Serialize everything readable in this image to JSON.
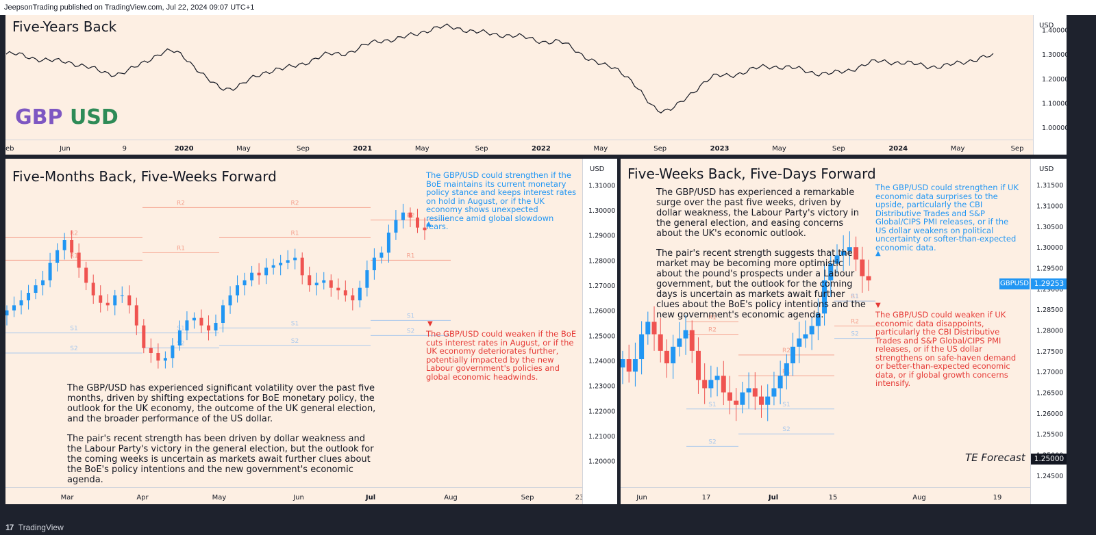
{
  "publish_info": "JeepsonTrading published on TradingView.com, Jul 22, 2024 09:07 UTC+1",
  "footer": {
    "brand": "TradingView"
  },
  "colors": {
    "panel_bg": "#fdefe3",
    "up": "#2196f3",
    "down": "#ef5350",
    "resistance": "#f4a28f",
    "support": "#a9c8ec",
    "blue_text": "#2196f3",
    "red_text": "#e53935",
    "gbp": "#7e57c2",
    "usd": "#2e8b57"
  },
  "top_chart": {
    "title": "Five-Years Back",
    "pair_gbp": "GBP",
    "pair_usd": "USD",
    "currency": "USD"
  },
  "left_chart": {
    "title": "Five-Months Back, Five-Weeks Forward",
    "currency": "USD",
    "level_labels": [
      "R2",
      "R1",
      "S1",
      "S2"
    ],
    "upside_note": "The GBP/USD could strengthen if the BoE maintains its current monetary policy stance and keeps interest rates on hold in August, or if the UK economy shows unexpected resilience amid global slowdown fears.",
    "downside_note": "The GBP/USD could weaken if the BoE cuts interest rates in August, or if the UK economy deteriorates further, potentially impacted by the new Labour government's policies and global economic headwinds.",
    "para1": "The GBP/USD has experienced significant volatility over the past five months, driven by shifting expectations for BoE monetary policy, the outlook for the UK economy, the outcome of the UK general election, and the broader performance of the US dollar.",
    "para2": "The pair's recent strength has been driven by dollar weakness and the Labour Party's victory in the general election, but the outlook for the coming weeks is uncertain as markets await further clues about the BoE's policy intentions and the new government's economic agenda.",
    "up_marker": "▲",
    "down_marker": "▼"
  },
  "right_chart": {
    "title": "Five-Weeks Back, Five-Days Forward",
    "currency": "USD",
    "para1": "The GBP/USD has experienced a remarkable surge over the past five weeks, driven by dollar weakness, the Labour Party's victory in the general election, and easing concerns about the UK's economic outlook.",
    "para2": "The pair's recent strength suggests that the market may be becoming more optimistic about the pound's prospects under a Labour government, but the outlook for the coming days is uncertain as markets await further clues about the BoE's policy intentions and the new government's economic agenda.",
    "upside_note": "The GBP/USD could strengthen if UK economic data surprises to the upside, particularly the CBI Distributive Trades and S&P Global/CIPS PMI releases, or if the US dollar weakens on political uncertainty or softer-than-expected economic data.",
    "downside_note": "The GBP/USD could weaken if UK economic data disappoints, particularly the CBI Distributive Trades and S&P Global/CIPS PMI releases, or if the US dollar strengthens on safe-haven demand or better-than-expected economic data, or if global growth concerns intensify.",
    "symbol_tag": "GBPUSD",
    "price_tag": "1.29253",
    "forecast_label": "TE Forecast",
    "forecast_value": "1.25000",
    "up_marker": "▲",
    "down_marker": "▼"
  },
  "chart_data": [
    {
      "type": "line",
      "title": "Five-Years Back",
      "series": [
        {
          "name": "GBPUSD",
          "x": [
            "2019-02",
            "2019-06",
            "2019-09",
            "2020-01",
            "2020-03",
            "2020-05",
            "2020-09",
            "2021-01",
            "2021-05",
            "2021-09",
            "2022-01",
            "2022-05",
            "2022-09",
            "2023-01",
            "2023-05",
            "2023-09",
            "2024-01",
            "2024-05",
            "2024-07"
          ],
          "values": [
            1.3,
            1.27,
            1.22,
            1.31,
            1.16,
            1.24,
            1.3,
            1.36,
            1.41,
            1.38,
            1.35,
            1.25,
            1.07,
            1.21,
            1.25,
            1.22,
            1.27,
            1.25,
            1.29
          ]
        }
      ],
      "x_tick_labels": [
        "eb",
        "Jun",
        "9",
        "2020",
        "May",
        "Sep",
        "2021",
        "May",
        "Sep",
        "2022",
        "May",
        "Sep",
        "2023",
        "May",
        "Sep",
        "2024",
        "May",
        "Sep"
      ],
      "y_tick_labels": [
        "1.40000",
        "1.30000",
        "1.20000",
        "1.10000",
        "1.00000"
      ],
      "ylim": [
        0.95,
        1.46
      ]
    },
    {
      "type": "candlestick",
      "title": "Five-Months Back, Five-Weeks Forward",
      "x_tick_labels": [
        "Mar",
        "Apr",
        "May",
        "Jun",
        "Jul",
        "Aug",
        "Sep",
        "23"
      ],
      "y_tick_labels": [
        "1.31000",
        "1.30000",
        "1.29000",
        "1.28000",
        "1.27000",
        "1.26000",
        "1.25000",
        "1.24000",
        "1.23000",
        "1.22000",
        "1.21000",
        "1.20000"
      ],
      "ylim": [
        1.195,
        1.315
      ],
      "closes": [
        1.26,
        1.262,
        1.264,
        1.267,
        1.27,
        1.272,
        1.279,
        1.284,
        1.288,
        1.283,
        1.277,
        1.271,
        1.266,
        1.263,
        1.262,
        1.266,
        1.266,
        1.262,
        1.254,
        1.245,
        1.243,
        1.24,
        1.241,
        1.246,
        1.252,
        1.256,
        1.257,
        1.254,
        1.252,
        1.255,
        1.262,
        1.266,
        1.27,
        1.272,
        1.275,
        1.274,
        1.277,
        1.278,
        1.279,
        1.28,
        1.281,
        1.274,
        1.27,
        1.271,
        1.272,
        1.269,
        1.268,
        1.266,
        1.264,
        1.269,
        1.276,
        1.281,
        1.283,
        1.291,
        1.296,
        1.299,
        1.297,
        1.293,
        1.292
      ],
      "levels": [
        {
          "label": "R2",
          "values": [
            1.289,
            1.301,
            1.301,
            1.296
          ]
        },
        {
          "label": "R1",
          "values": [
            1.28,
            1.283,
            1.289,
            1.28
          ]
        },
        {
          "label": "S1",
          "values": [
            1.251,
            1.251,
            1.253,
            1.256
          ]
        },
        {
          "label": "S2",
          "values": [
            1.243,
            1.245,
            1.246,
            1.25
          ]
        }
      ]
    },
    {
      "type": "candlestick",
      "title": "Five-Weeks Back, Five-Days Forward",
      "x_tick_labels": [
        "Jun",
        "17",
        "Jul",
        "15",
        "Aug",
        "19"
      ],
      "y_tick_labels": [
        "1.31500",
        "1.31000",
        "1.30500",
        "1.30000",
        "1.29500",
        "1.29000",
        "1.28500",
        "1.28000",
        "1.27500",
        "1.27000",
        "1.26500",
        "1.26000",
        "1.25500",
        "1.25000",
        "1.24500"
      ],
      "ylim": [
        1.243,
        1.318
      ],
      "closes": [
        1.273,
        1.27,
        1.273,
        1.279,
        1.282,
        1.279,
        1.275,
        1.272,
        1.276,
        1.278,
        1.28,
        1.275,
        1.268,
        1.266,
        1.268,
        1.269,
        1.265,
        1.263,
        1.262,
        1.265,
        1.266,
        1.264,
        1.262,
        1.264,
        1.266,
        1.269,
        1.272,
        1.276,
        1.278,
        1.279,
        1.281,
        1.284,
        1.292,
        1.296,
        1.298,
        1.299,
        1.3,
        1.297,
        1.293,
        1.292
      ],
      "last_price": 1.29253,
      "forecast": 1.25,
      "levels": [
        {
          "label": "R2",
          "values": [
            1.279,
            1.274,
            1.281
          ]
        },
        {
          "label": "R1",
          "values": [
            1.282,
            1.269,
            1.287
          ]
        },
        {
          "label": "S1",
          "values": [
            1.261,
            1.261,
            1.287
          ]
        },
        {
          "label": "S2",
          "values": [
            1.252,
            1.255,
            1.278
          ]
        }
      ]
    }
  ]
}
